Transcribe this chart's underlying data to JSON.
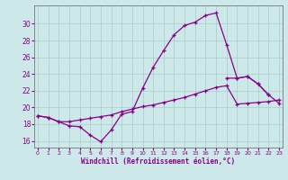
{
  "xlabel": "Windchill (Refroidissement éolien,°C)",
  "bg_color": "#cce8e8",
  "grid_color": "#aacccc",
  "line_color": "#880088",
  "x_values": [
    0,
    1,
    2,
    3,
    4,
    5,
    6,
    7,
    8,
    9,
    10,
    11,
    12,
    13,
    14,
    15,
    16,
    17,
    18,
    19,
    20,
    21,
    22,
    23
  ],
  "line1": [
    19.0,
    18.8,
    18.3,
    17.8,
    17.7,
    16.7,
    15.9,
    17.3,
    19.2,
    19.5,
    22.3,
    24.8,
    26.8,
    28.7,
    29.8,
    30.2,
    31.0,
    31.3,
    27.5,
    23.5,
    23.7,
    22.8,
    21.5,
    null
  ],
  "line2": [
    null,
    null,
    null,
    null,
    null,
    null,
    null,
    null,
    null,
    null,
    null,
    null,
    null,
    null,
    null,
    null,
    null,
    null,
    23.5,
    23.5,
    23.7,
    22.8,
    21.5,
    20.5
  ],
  "line3": [
    19.0,
    18.8,
    18.3,
    18.3,
    18.5,
    18.7,
    18.9,
    19.1,
    19.5,
    19.8,
    20.1,
    20.3,
    20.6,
    20.9,
    21.2,
    21.6,
    22.0,
    22.4,
    22.6,
    20.4,
    20.5,
    20.6,
    20.7,
    20.9
  ],
  "xlim": [
    -0.3,
    23.3
  ],
  "ylim": [
    15.2,
    32.2
  ],
  "yticks": [
    16,
    18,
    20,
    22,
    24,
    26,
    28,
    30
  ],
  "xticks": [
    0,
    1,
    2,
    3,
    4,
    5,
    6,
    7,
    8,
    9,
    10,
    11,
    12,
    13,
    14,
    15,
    16,
    17,
    18,
    19,
    20,
    21,
    22,
    23
  ]
}
